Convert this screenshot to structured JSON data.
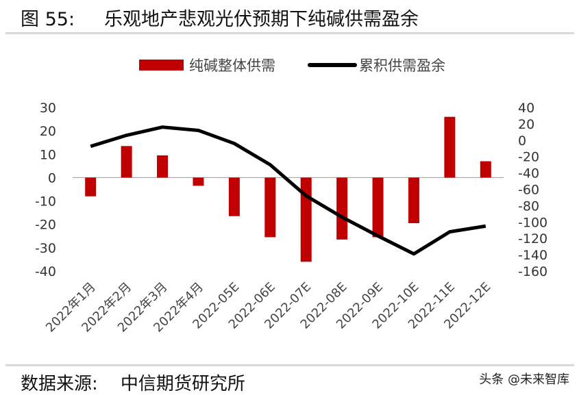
{
  "figure_title": "图 55:     乐观地产悲观光伏预期下纯碱供需盈余",
  "source": "数据来源:    中信期货研究所",
  "watermark": "头条 @未来智库",
  "chart_data": {
    "type": "bar+line",
    "categories": [
      "2022年1月",
      "2022年2月",
      "2022年3月",
      "2022年4月",
      "2022-05E",
      "2022-06E",
      "2022-07E",
      "2022-08E",
      "2022-09E",
      "2022-10E",
      "2022-11E",
      "2022-12E"
    ],
    "series": [
      {
        "name": "纯碱整体供需",
        "type": "bar",
        "axis": "left",
        "color": "#c00000",
        "values": [
          -8,
          13.5,
          9.5,
          -3.5,
          -16.5,
          -25.5,
          -36,
          -26.5,
          -25.5,
          -19.5,
          26,
          7
        ]
      },
      {
        "name": "累积供需盈余",
        "type": "line",
        "axis": "right",
        "color": "#000000",
        "values": [
          -7.5,
          6,
          16,
          12,
          -4,
          -30,
          -68,
          -94,
          -117,
          -139,
          -112,
          -105
        ]
      }
    ],
    "left_axis": {
      "range": [
        -40,
        30
      ],
      "ticks": [
        30,
        20,
        10,
        0,
        -10,
        -20,
        -30,
        -40
      ]
    },
    "right_axis": {
      "range": [
        -160,
        40
      ],
      "ticks": [
        40,
        20,
        0,
        -20,
        -40,
        -60,
        -80,
        -100,
        -120,
        -140,
        -160
      ]
    },
    "legend_position": "top",
    "grid": false
  }
}
